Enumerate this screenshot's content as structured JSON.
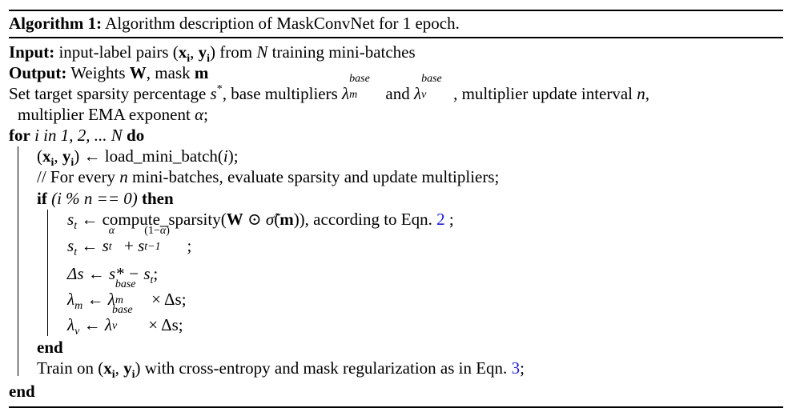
{
  "algorithm": {
    "label": "Algorithm 1:",
    "caption": "Algorithm description of MaskConvNet for 1 epoch."
  },
  "input": {
    "keyword": "Input:",
    "text_a": "input-label pairs (",
    "text_b": ") from ",
    "text_c": " training mini-batches"
  },
  "output": {
    "keyword": "Output:",
    "text_a": "Weights ",
    "text_b": ", mask "
  },
  "setup": {
    "line1_a": "Set target sparsity percentage ",
    "line1_b": ", base multipliers ",
    "line1_c": " and ",
    "line1_d": ", multiplier update interval ",
    "line2_a": "multiplier EMA exponent ",
    "line2_b": ";"
  },
  "loop": {
    "for_kw": "for",
    "for_range": "i in 1, 2, ... N",
    "do_kw": "do",
    "load_a": ") ← load_mini_batch(",
    "load_b": ");",
    "comment_a": "// For every ",
    "comment_b": " mini-batches, evaluate sparsity and update multipliers;",
    "if_kw": "if",
    "if_cond": "(i % n == 0)",
    "then_kw": "then",
    "s1_a": " ← compute_sparsity(",
    "s1_b": ")), according to Eqn. ",
    "s1_ref": "2",
    "s1_c": " ;",
    "s2_c": " ;",
    "s3": "Δs ← s* − s",
    "s4_b": " × Δs;",
    "end_if": "end",
    "train_a": "Train on (",
    "train_b": ") with cross-entropy and mask regularization as in Eqn. ",
    "train_ref": "3",
    "train_c": ";",
    "end_for": "end"
  }
}
